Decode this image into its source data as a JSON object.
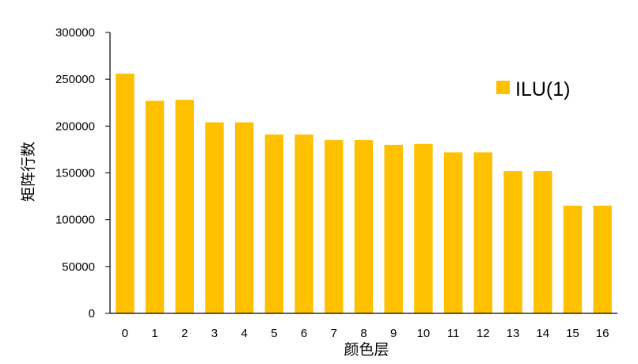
{
  "chart_data": {
    "type": "bar",
    "categories": [
      "0",
      "1",
      "2",
      "3",
      "4",
      "5",
      "6",
      "7",
      "8",
      "9",
      "10",
      "11",
      "12",
      "13",
      "14",
      "15",
      "16"
    ],
    "series": [
      {
        "name": "ILU(1)",
        "color": "#FFC000",
        "values": [
          256000,
          227000,
          228000,
          204000,
          204000,
          191000,
          191000,
          185000,
          185000,
          180000,
          181000,
          172000,
          172000,
          152000,
          152000,
          115000,
          115000
        ]
      }
    ],
    "title": "",
    "xlabel": "颜色层",
    "ylabel": "矩阵行数",
    "ylim": [
      0,
      300000
    ],
    "yticks": [
      "0",
      "50000",
      "100000",
      "150000",
      "200000",
      "250000",
      "300000"
    ],
    "grid": false,
    "legend_position": "top-right"
  }
}
